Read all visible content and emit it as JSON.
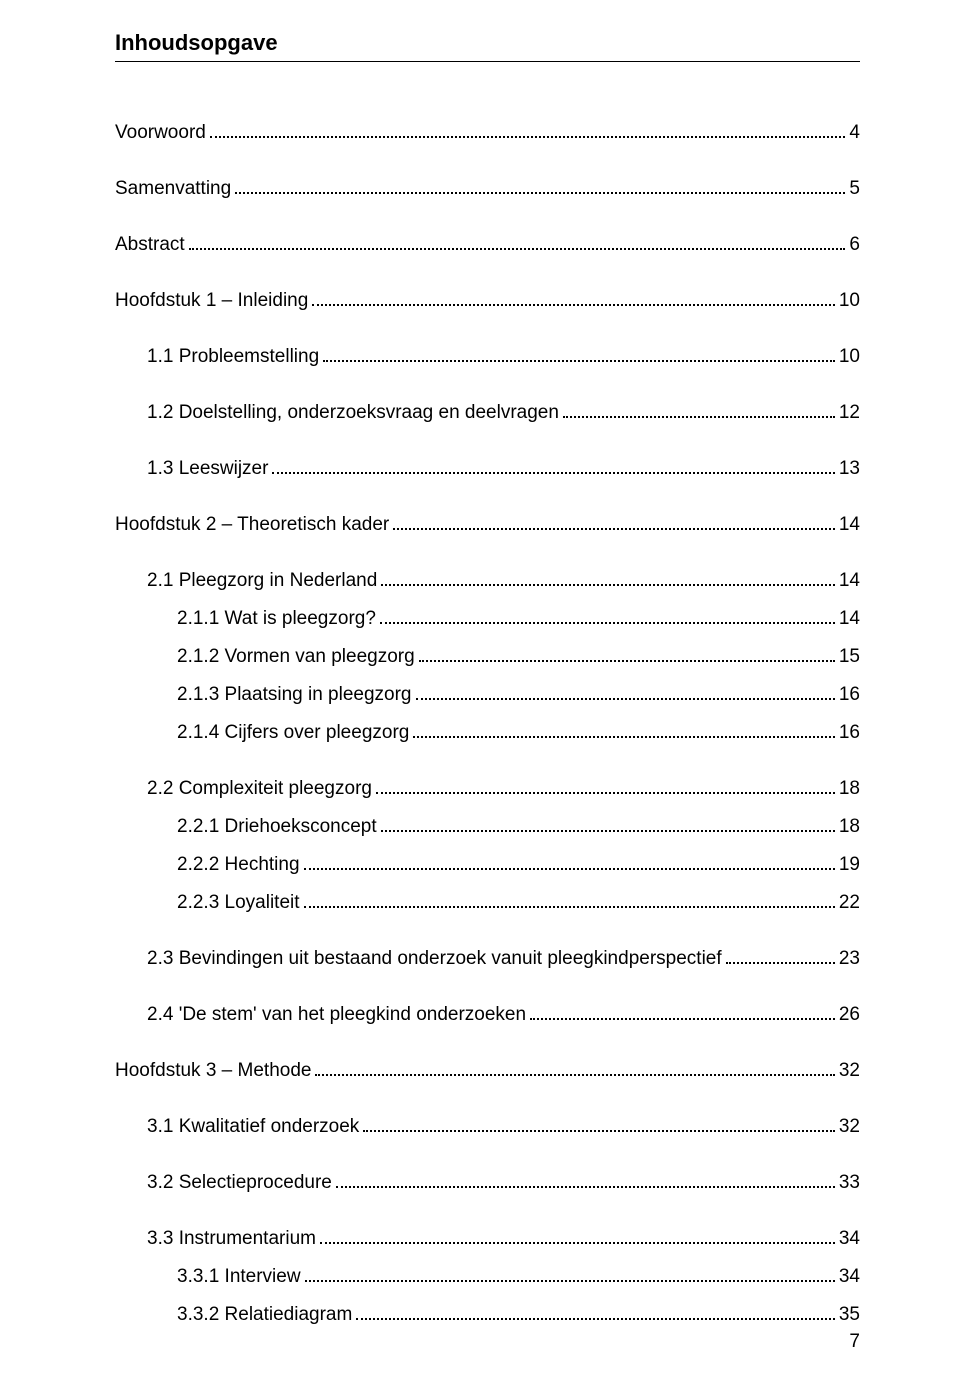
{
  "title": "Inhoudsopgave",
  "pageNumber": "7",
  "entries": [
    {
      "label": "Voorwoord",
      "page": "4",
      "indent": 0,
      "spaceAfter": true
    },
    {
      "label": "Samenvatting",
      "page": "5",
      "indent": 0,
      "spaceAfter": true
    },
    {
      "label": "Abstract",
      "page": "6",
      "indent": 0,
      "spaceAfter": true
    },
    {
      "label": "Hoofdstuk 1 – Inleiding",
      "page": "10",
      "indent": 0,
      "spaceAfter": true
    },
    {
      "label": "1.1 Probleemstelling",
      "page": "10",
      "indent": 1,
      "spaceAfter": true
    },
    {
      "label": "1.2 Doelstelling, onderzoeksvraag en deelvragen",
      "page": "12",
      "indent": 1,
      "spaceAfter": true
    },
    {
      "label": "1.3 Leeswijzer",
      "page": "13",
      "indent": 1,
      "spaceAfter": true
    },
    {
      "label": "Hoofdstuk 2 – Theoretisch kader",
      "page": "14",
      "indent": 0,
      "spaceAfter": true
    },
    {
      "label": "2.1 Pleegzorg in Nederland",
      "page": "14",
      "indent": 1,
      "spaceAfter": false
    },
    {
      "label": "2.1.1 Wat is pleegzorg?",
      "page": "14",
      "indent": 2,
      "spaceAfter": false
    },
    {
      "label": "2.1.2 Vormen van pleegzorg",
      "page": "15",
      "indent": 2,
      "spaceAfter": false
    },
    {
      "label": "2.1.3 Plaatsing in pleegzorg",
      "page": "16",
      "indent": 2,
      "spaceAfter": false
    },
    {
      "label": "2.1.4 Cijfers over pleegzorg",
      "page": "16",
      "indent": 2,
      "spaceAfter": true
    },
    {
      "label": "2.2 Complexiteit pleegzorg",
      "page": "18",
      "indent": 1,
      "spaceAfter": false
    },
    {
      "label": "2.2.1 Driehoeksconcept",
      "page": "18",
      "indent": 2,
      "spaceAfter": false
    },
    {
      "label": "2.2.2 Hechting",
      "page": "19",
      "indent": 2,
      "spaceAfter": false
    },
    {
      "label": "2.2.3 Loyaliteit",
      "page": "22",
      "indent": 2,
      "spaceAfter": true
    },
    {
      "label": "2.3 Bevindingen uit bestaand onderzoek vanuit pleegkindperspectief",
      "page": "23",
      "indent": 1,
      "spaceAfter": true
    },
    {
      "label": "2.4 'De stem' van het pleegkind onderzoeken",
      "page": "26",
      "indent": 1,
      "spaceAfter": true
    },
    {
      "label": "Hoofdstuk 3 – Methode",
      "page": "32",
      "indent": 0,
      "spaceAfter": true
    },
    {
      "label": "3.1 Kwalitatief onderzoek",
      "page": "32",
      "indent": 1,
      "spaceAfter": true
    },
    {
      "label": "3.2 Selectieprocedure",
      "page": "33",
      "indent": 1,
      "spaceAfter": true
    },
    {
      "label": "3.3 Instrumentarium",
      "page": "34",
      "indent": 1,
      "spaceAfter": false
    },
    {
      "label": "3.3.1 Interview",
      "page": "34",
      "indent": 2,
      "spaceAfter": false
    },
    {
      "label": "3.3.2 Relatiediagram",
      "page": "35",
      "indent": 2,
      "spaceAfter": false
    }
  ]
}
